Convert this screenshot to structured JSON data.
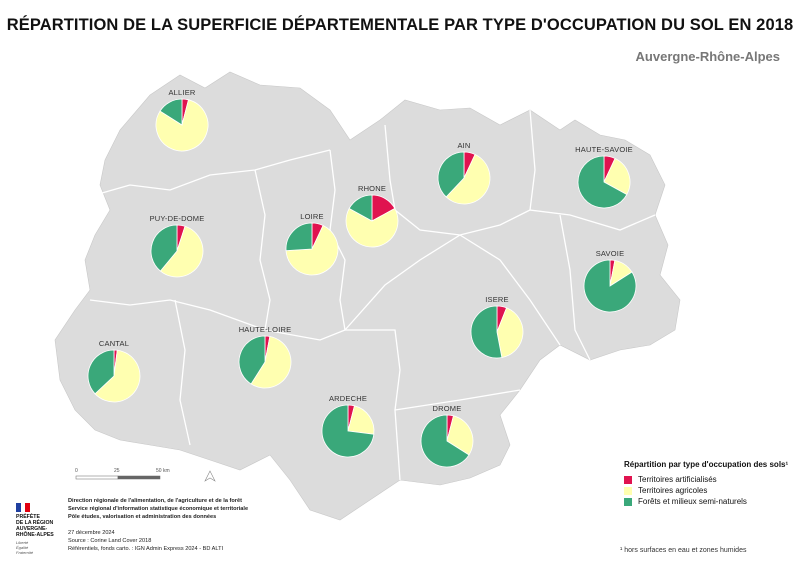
{
  "title": "RÉPARTITION DE LA SUPERFICIE DÉPARTEMENTALE PAR TYPE D'OCCUPATION DU SOL EN 2018",
  "subtitle": "Auvergne-Rhône-Alpes",
  "colors": {
    "artificialises": "#e0134f",
    "agricoles": "#ffffb0",
    "forets": "#3aa87a",
    "map_fill": "#dcdcdc",
    "map_border": "#ffffff"
  },
  "legend": {
    "title": "Répartition par type d'occupation des sols¹",
    "items": [
      {
        "key": "artificialises",
        "label": "Territoires artificialisés"
      },
      {
        "key": "agricoles",
        "label": "Territoires agricoles"
      },
      {
        "key": "forets",
        "label": "Forêts et milieux semi-naturels"
      }
    ]
  },
  "footnote": "¹ hors surfaces en eau et zones humides",
  "scale": {
    "labels": [
      "0",
      "25",
      "50 km"
    ]
  },
  "credits": {
    "org_lines": [
      "Direction régionale de l'alimentation, de l'agriculture et de la forêt",
      "Service régional d'information statistique économique et territoriale",
      "Pôle études, valorisation et administration des données"
    ],
    "date": "27 décembre 2024",
    "source": "Source : Corine Land Cover 2018",
    "references": "Référentiels, fonds carto. : IGN Admin Express 2024 - BD ALTI"
  },
  "logo": {
    "lines": [
      "PRÉFÈTE",
      "DE LA RÉGION",
      "AUVERGNE-",
      "RHÔNE-ALPES"
    ],
    "motto": [
      "Liberté",
      "Égalité",
      "Fraternité"
    ]
  },
  "departments": [
    {
      "name": "ALLIER",
      "artificialises": 4,
      "agricoles": 80,
      "forets": 16
    },
    {
      "name": "AIN",
      "artificialises": 7,
      "agricoles": 55,
      "forets": 38
    },
    {
      "name": "RHONE",
      "artificialises": 17,
      "agricoles": 66,
      "forets": 17
    },
    {
      "name": "HAUTE-SAVOIE",
      "artificialises": 7,
      "agricoles": 26,
      "forets": 67
    },
    {
      "name": "PUY-DE-DOME",
      "artificialises": 5,
      "agricoles": 56,
      "forets": 39
    },
    {
      "name": "LOIRE",
      "artificialises": 7,
      "agricoles": 67,
      "forets": 26
    },
    {
      "name": "SAVOIE",
      "artificialises": 3,
      "agricoles": 13,
      "forets": 84
    },
    {
      "name": "ISERE",
      "artificialises": 6,
      "agricoles": 41,
      "forets": 53
    },
    {
      "name": "CANTAL",
      "artificialises": 2,
      "agricoles": 61,
      "forets": 37
    },
    {
      "name": "HAUTE-LOIRE",
      "artificialises": 3,
      "agricoles": 56,
      "forets": 41
    },
    {
      "name": "ARDECHE",
      "artificialises": 4,
      "agricoles": 23,
      "forets": 73
    },
    {
      "name": "DROME",
      "artificialises": 4,
      "agricoles": 30,
      "forets": 66
    }
  ]
}
